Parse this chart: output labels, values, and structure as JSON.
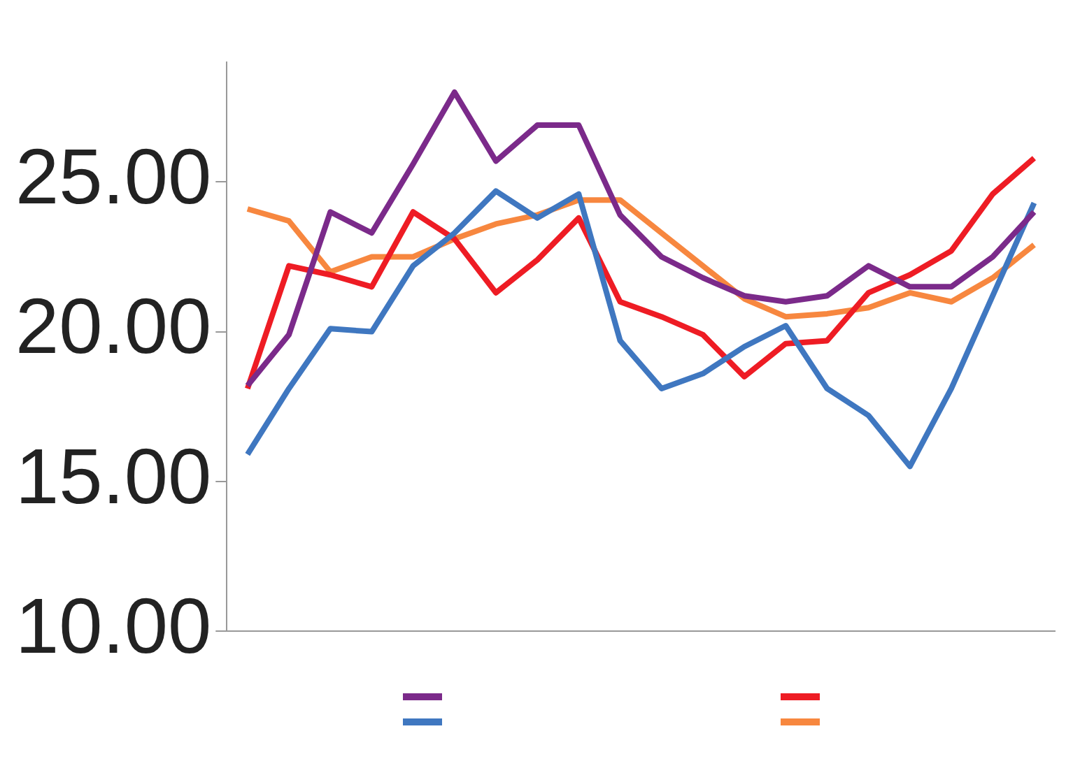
{
  "chart_data": {
    "type": "line",
    "categories": [
      null,
      null,
      null,
      null,
      null,
      null,
      null,
      null,
      null,
      null,
      null,
      null,
      null,
      null,
      null,
      null,
      null,
      null,
      null,
      null
    ],
    "series": [
      {
        "color": "#7b2a8a",
        "values": [
          18.2,
          19.9,
          24.0,
          23.3,
          25.6,
          28.0,
          25.7,
          26.9,
          26.9,
          23.9,
          22.5,
          21.8,
          21.2,
          21.0,
          21.2,
          22.2,
          21.5,
          21.5,
          22.5,
          24.0
        ]
      },
      {
        "color": "#3f77c0",
        "values": [
          15.9,
          18.1,
          20.1,
          20.0,
          22.2,
          23.3,
          24.7,
          23.8,
          24.6,
          19.7,
          18.1,
          18.6,
          19.5,
          20.2,
          18.1,
          17.2,
          15.5,
          18.1,
          21.2,
          24.3
        ]
      },
      {
        "color": "#ee1c24",
        "values": [
          18.1,
          22.2,
          21.9,
          21.5,
          24.0,
          23.1,
          21.3,
          22.4,
          23.8,
          21.0,
          20.5,
          19.9,
          18.5,
          19.6,
          19.7,
          21.3,
          21.9,
          22.7,
          24.6,
          25.8
        ]
      },
      {
        "color": "#f7873f",
        "values": [
          24.1,
          23.7,
          22.0,
          22.5,
          22.5,
          23.1,
          23.6,
          23.9,
          24.4,
          24.4,
          23.3,
          22.2,
          21.1,
          20.5,
          20.6,
          20.8,
          21.3,
          21.0,
          21.8,
          22.9
        ]
      }
    ],
    "ylim": [
      10,
      29
    ],
    "yticks": [
      {
        "value": 10,
        "label": "10.00"
      },
      {
        "value": 15,
        "label": "15.00"
      },
      {
        "value": 20,
        "label": "20.00"
      },
      {
        "value": 25,
        "label": "25.00"
      }
    ],
    "grid": false,
    "marker": "none",
    "line_style": "solid"
  }
}
